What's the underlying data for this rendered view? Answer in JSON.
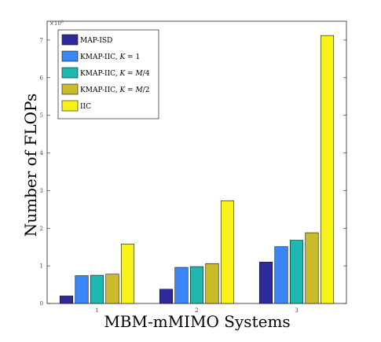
{
  "chart_data": {
    "type": "bar",
    "categories": [
      "1",
      "2",
      "3"
    ],
    "xlabel": "MBM-mMIMO Systems",
    "ylabel": "Number of FLOPs",
    "ylim": [
      0,
      7500000
    ],
    "yticks": [
      0,
      1,
      2,
      3,
      4,
      5,
      6,
      7
    ],
    "y_multiplier_label": "×10^6",
    "grid": false,
    "legend_position": "top-left",
    "series": [
      {
        "name": "MAP-ISD",
        "values": [
          200000,
          380000,
          1100000
        ],
        "color": "#2e2a9c"
      },
      {
        "name": "KMAP-IIC, K = 1",
        "values": [
          740000,
          960000,
          1510000
        ],
        "color": "#3a86f5"
      },
      {
        "name": "KMAP-IIC, K = M/4",
        "values": [
          750000,
          980000,
          1680000
        ],
        "color": "#1fb8b0"
      },
      {
        "name": "KMAP-IIC, K = M/2",
        "values": [
          780000,
          1060000,
          1880000
        ],
        "color": "#c9bb2c"
      },
      {
        "name": "IIC",
        "values": [
          1580000,
          2730000,
          7120000
        ],
        "color": "#f7f21a"
      }
    ]
  }
}
